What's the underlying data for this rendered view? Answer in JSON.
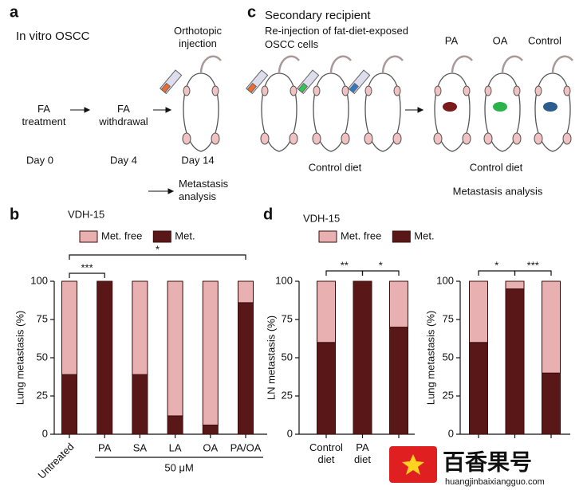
{
  "panel_letters": [
    "a",
    "b",
    "c",
    "d"
  ],
  "diagram_a": {
    "title": "In vitro OSCC",
    "steps": [
      "FA treatment",
      "FA withdrawal",
      "Orthotopic injection"
    ],
    "days": [
      "Day 0",
      "Day 4",
      "Day 14"
    ],
    "outcome": "Metastasis analysis"
  },
  "diagram_c": {
    "title": "Secondary recipient",
    "subtitle": "Re-injection of fat-diet-exposed OSCC cells",
    "groups": [
      "PA",
      "OA",
      "Control"
    ],
    "diet_left": "Control diet",
    "diet_right": "Control diet",
    "outcome": "Metastasis analysis"
  },
  "watermark": {
    "name": "百香果号",
    "url": "huangjinbaixiangguo.com"
  },
  "chart_data": [
    {
      "type": "bar",
      "stacked": true,
      "subtitle": "VDH-15",
      "ylabel": "Lung metastasis (%)",
      "xlabel": "50 μM",
      "xlabel_span": [
        1,
        5
      ],
      "categories": [
        "Untreated",
        "PA",
        "SA",
        "LA",
        "OA",
        "PA/OA"
      ],
      "series": [
        {
          "name": "Met. free",
          "color": "#e8b0b0",
          "values": [
            61,
            0,
            61,
            88,
            94,
            14
          ]
        },
        {
          "name": "Met.",
          "color": "#5a1717",
          "values": [
            39,
            100,
            39,
            12,
            6,
            86
          ]
        }
      ],
      "ylim": [
        0,
        100
      ],
      "yticks": [
        0,
        25,
        50,
        75,
        100
      ],
      "annotations": [
        {
          "text": "***",
          "between": [
            0,
            1
          ]
        },
        {
          "text": "*",
          "between": [
            0,
            5
          ]
        }
      ]
    },
    {
      "type": "bar",
      "stacked": true,
      "subtitle": "VDH-15",
      "ylabel": "LN metastasis (%)",
      "categories": [
        "Control diet",
        "PA diet",
        null
      ],
      "series": [
        {
          "name": "Met. free",
          "color": "#e8b0b0",
          "values": [
            40,
            0,
            30
          ]
        },
        {
          "name": "Met.",
          "color": "#5a1717",
          "values": [
            60,
            100,
            70
          ]
        }
      ],
      "ylim": [
        0,
        100
      ],
      "yticks": [
        0,
        25,
        50,
        75,
        100
      ],
      "annotations": [
        {
          "text": "**",
          "between": [
            0,
            1
          ]
        },
        {
          "text": "*",
          "between": [
            1,
            2
          ]
        }
      ]
    },
    {
      "type": "bar",
      "stacked": true,
      "ylabel": "Lung metastasis (%)",
      "categories": [
        null,
        null,
        null
      ],
      "series": [
        {
          "color": "#e8b0b0",
          "values": [
            40,
            5,
            60
          ]
        },
        {
          "color": "#5a1717",
          "values": [
            60,
            95,
            40
          ]
        }
      ],
      "ylim": [
        0,
        100
      ],
      "yticks": [
        0,
        25,
        50,
        75,
        100
      ],
      "annotations": [
        {
          "text": "*",
          "between": [
            0,
            1
          ]
        },
        {
          "text": "***",
          "between": [
            1,
            2
          ]
        }
      ]
    }
  ]
}
